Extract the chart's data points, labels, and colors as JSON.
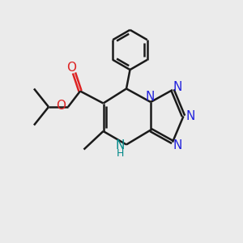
{
  "bg_color": "#ebebeb",
  "bond_color": "#1a1a1a",
  "N_color": "#2222dd",
  "O_color": "#dd2222",
  "NH_color": "#008888",
  "lw": 1.8,
  "fs": 11,
  "xlim": [
    0,
    10
  ],
  "ylim": [
    0,
    10
  ]
}
